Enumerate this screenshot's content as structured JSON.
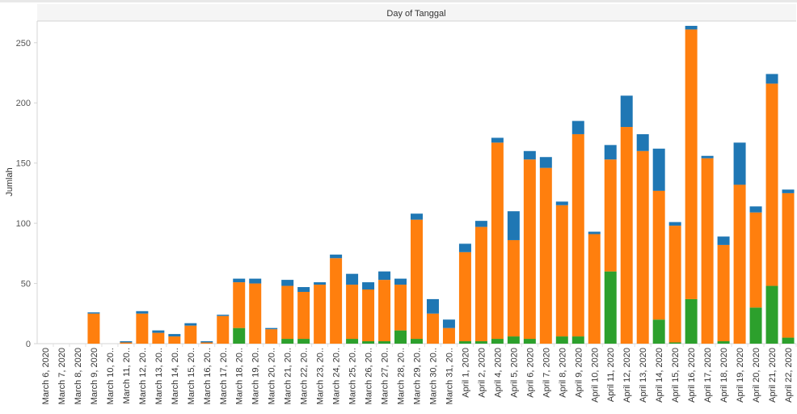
{
  "chart_data": {
    "type": "bar",
    "stacked": true,
    "title": "Day of Tanggal",
    "xlabel": "",
    "ylabel": "Jumlah",
    "ylim": [
      0,
      268
    ],
    "yticks": [
      0,
      50,
      100,
      150,
      200,
      250
    ],
    "categories": [
      "March 6, 2020",
      "March 7, 2020",
      "March 8, 2020",
      "March 9, 2020",
      "March 10, 20..",
      "March 11, 20..",
      "March 12, 20..",
      "March 13, 20..",
      "March 14, 20..",
      "March 15, 20..",
      "March 16, 20..",
      "March 17, 20..",
      "March 18, 20..",
      "March 19, 20..",
      "March 20, 20..",
      "March 21, 20..",
      "March 22, 20..",
      "March 23, 20..",
      "March 24, 20..",
      "March 25, 20..",
      "March 26, 20..",
      "March 27, 20..",
      "March 28, 20..",
      "March 29, 20..",
      "March 30, 20..",
      "March 31, 20..",
      "April 1, 2020",
      "April 2, 2020",
      "April 4, 2020",
      "April 5, 2020",
      "April 6, 2020",
      "April 7, 2020",
      "April 8, 2020",
      "April 9, 2020",
      "April 10, 2020",
      "April 11, 2020",
      "April 12, 2020",
      "April 13, 2020",
      "April 14, 2020",
      "April 15, 2020",
      "April 16, 2020",
      "April 17, 2020",
      "April 18, 2020",
      "April 19, 2020",
      "April 20, 2020",
      "April 21, 2020",
      "April 22, 2020"
    ],
    "series": [
      {
        "name": "green",
        "color": "#2ca02c",
        "values": [
          0,
          0,
          0,
          0,
          0,
          0,
          0,
          0,
          0,
          0,
          0,
          0,
          13,
          0,
          0,
          4,
          4,
          0,
          0,
          4,
          2,
          2,
          11,
          4,
          0,
          0,
          2,
          2,
          4,
          6,
          4,
          0,
          6,
          6,
          0,
          60,
          0,
          0,
          20,
          1,
          37,
          0,
          2,
          0,
          30,
          48,
          5
        ]
      },
      {
        "name": "orange",
        "color": "#ff7f0e",
        "values": [
          0,
          0,
          0,
          25,
          0,
          1,
          25,
          9,
          6,
          15,
          1,
          23,
          38,
          50,
          12,
          44,
          39,
          49,
          71,
          45,
          43,
          51,
          38,
          99,
          25,
          13,
          74,
          95,
          163,
          80,
          149,
          146,
          109,
          168,
          91,
          93,
          180,
          160,
          107,
          97,
          224,
          154,
          80,
          132,
          79,
          168,
          120
        ]
      },
      {
        "name": "blue",
        "color": "#1f77b4",
        "values": [
          0,
          0,
          0,
          1,
          0,
          1,
          2,
          2,
          2,
          2,
          1,
          1,
          3,
          4,
          1,
          5,
          4,
          2,
          3,
          9,
          6,
          7,
          5,
          5,
          12,
          7,
          7,
          5,
          4,
          24,
          7,
          9,
          3,
          11,
          2,
          12,
          26,
          14,
          35,
          3,
          3,
          2,
          7,
          35,
          5,
          8,
          3
        ]
      }
    ]
  }
}
